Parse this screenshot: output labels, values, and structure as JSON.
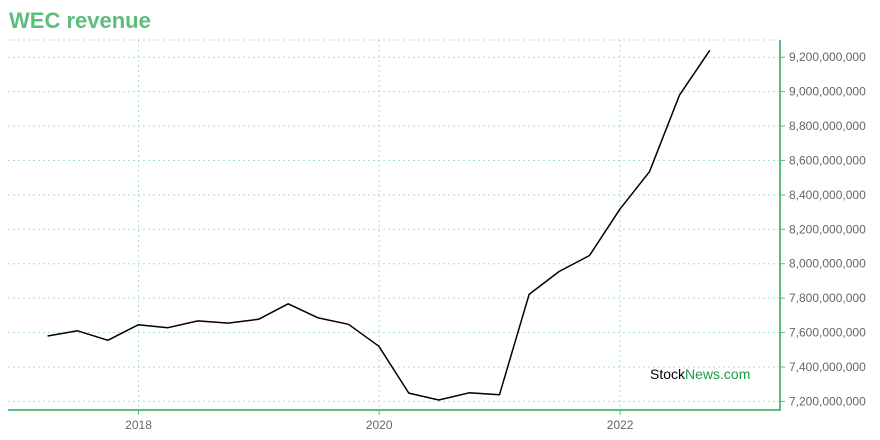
{
  "chart_data": {
    "type": "line",
    "title": "WEC revenue",
    "xlabel": "",
    "ylabel": "",
    "x": [
      "2017-03-31",
      "2017-06-30",
      "2017-09-30",
      "2017-12-31",
      "2018-03-31",
      "2018-06-30",
      "2018-09-30",
      "2018-12-31",
      "2019-03-31",
      "2019-06-30",
      "2019-09-30",
      "2019-12-31",
      "2020-03-31",
      "2020-06-30",
      "2020-09-30",
      "2020-12-31",
      "2021-03-31",
      "2021-06-30",
      "2021-09-30",
      "2021-12-31",
      "2022-03-31",
      "2022-06-30",
      "2022-09-30"
    ],
    "series": [
      {
        "values": [
          7580000000,
          7610000000,
          7555000000,
          7645000000,
          7628000000,
          7668000000,
          7655000000,
          7677000000,
          7767000000,
          7685000000,
          7648000000,
          7521000000,
          7248000000,
          7208000000,
          7250000000,
          7239000000,
          7822000000,
          7955000000,
          8048000000,
          8316000000,
          8535000000,
          8980000000,
          9240000000
        ]
      }
    ],
    "x_ticks": [
      "2018",
      "2020",
      "2022"
    ],
    "y_ticks": [
      "7,200,000,000",
      "7,400,000,000",
      "7,600,000,000",
      "7,800,000,000",
      "8,000,000,000",
      "8,200,000,000",
      "8,400,000,000",
      "8,600,000,000",
      "8,800,000,000",
      "9,000,000,000",
      "9,200,000,000"
    ],
    "x_range": [
      "2016-12-01",
      "2023-05-01"
    ],
    "ylim": [
      7150000000,
      9300000000
    ],
    "grid": true,
    "line_color": "#000000",
    "axis_color": "#5cbd7d",
    "grid_color": "#a8e0c0"
  },
  "watermark": {
    "part1": "Stock",
    "part2": "News.com"
  }
}
